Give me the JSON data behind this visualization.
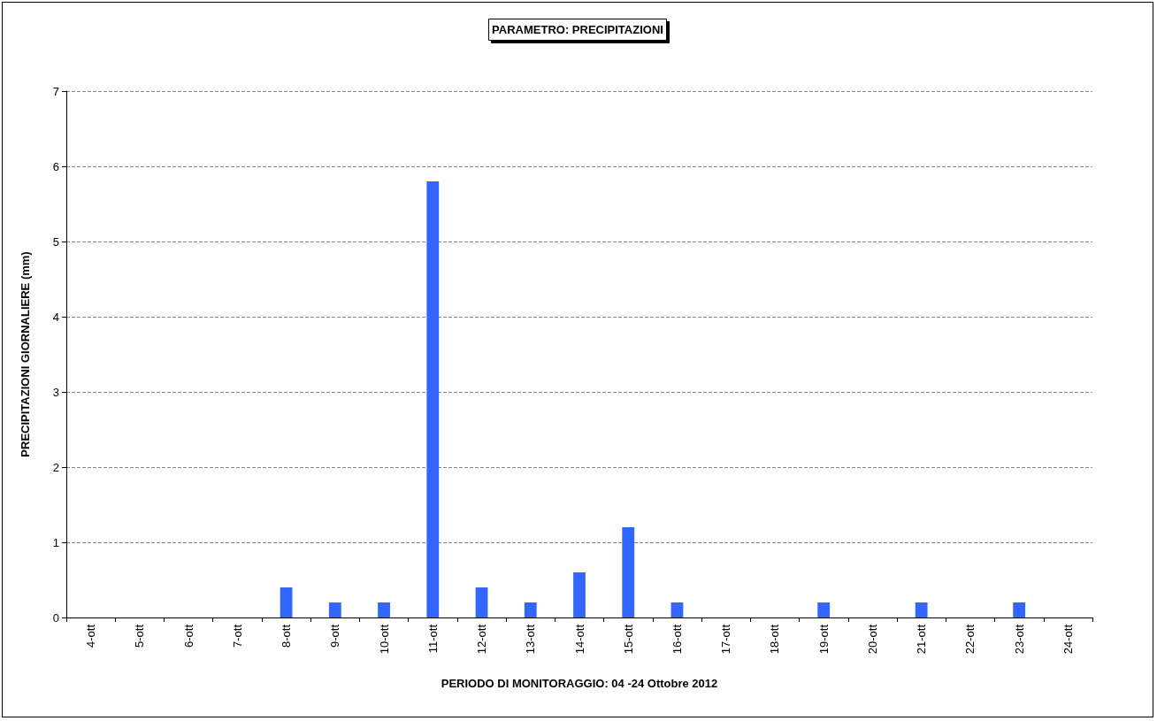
{
  "chart_data": {
    "type": "bar",
    "title": "PARAMETRO: PRECIPITAZIONI",
    "xlabel": "PERIODO DI MONITORAGGIO: 04 -24 Ottobre 2012",
    "ylabel": "PRECIPITAZIONI GIORNALIERE (mm)",
    "categories": [
      "4-ott",
      "5-ott",
      "6-ott",
      "7-ott",
      "8-ott",
      "9-ott",
      "10-ott",
      "11-ott",
      "12-ott",
      "13-ott",
      "14-ott",
      "15-ott",
      "16-ott",
      "17-ott",
      "18-ott",
      "19-ott",
      "20-ott",
      "21-ott",
      "22-ott",
      "23-ott",
      "24-ott"
    ],
    "values": [
      0,
      0,
      0,
      0,
      0.4,
      0.2,
      0.2,
      5.8,
      0.4,
      0.2,
      0.6,
      1.2,
      0.2,
      0,
      0,
      0.2,
      0,
      0.2,
      0,
      0.2,
      0
    ],
    "color": "#3366ff",
    "ylim": [
      0,
      7
    ],
    "yticks": [
      0,
      1,
      2,
      3,
      4,
      5,
      6,
      7
    ],
    "grid": "y"
  }
}
